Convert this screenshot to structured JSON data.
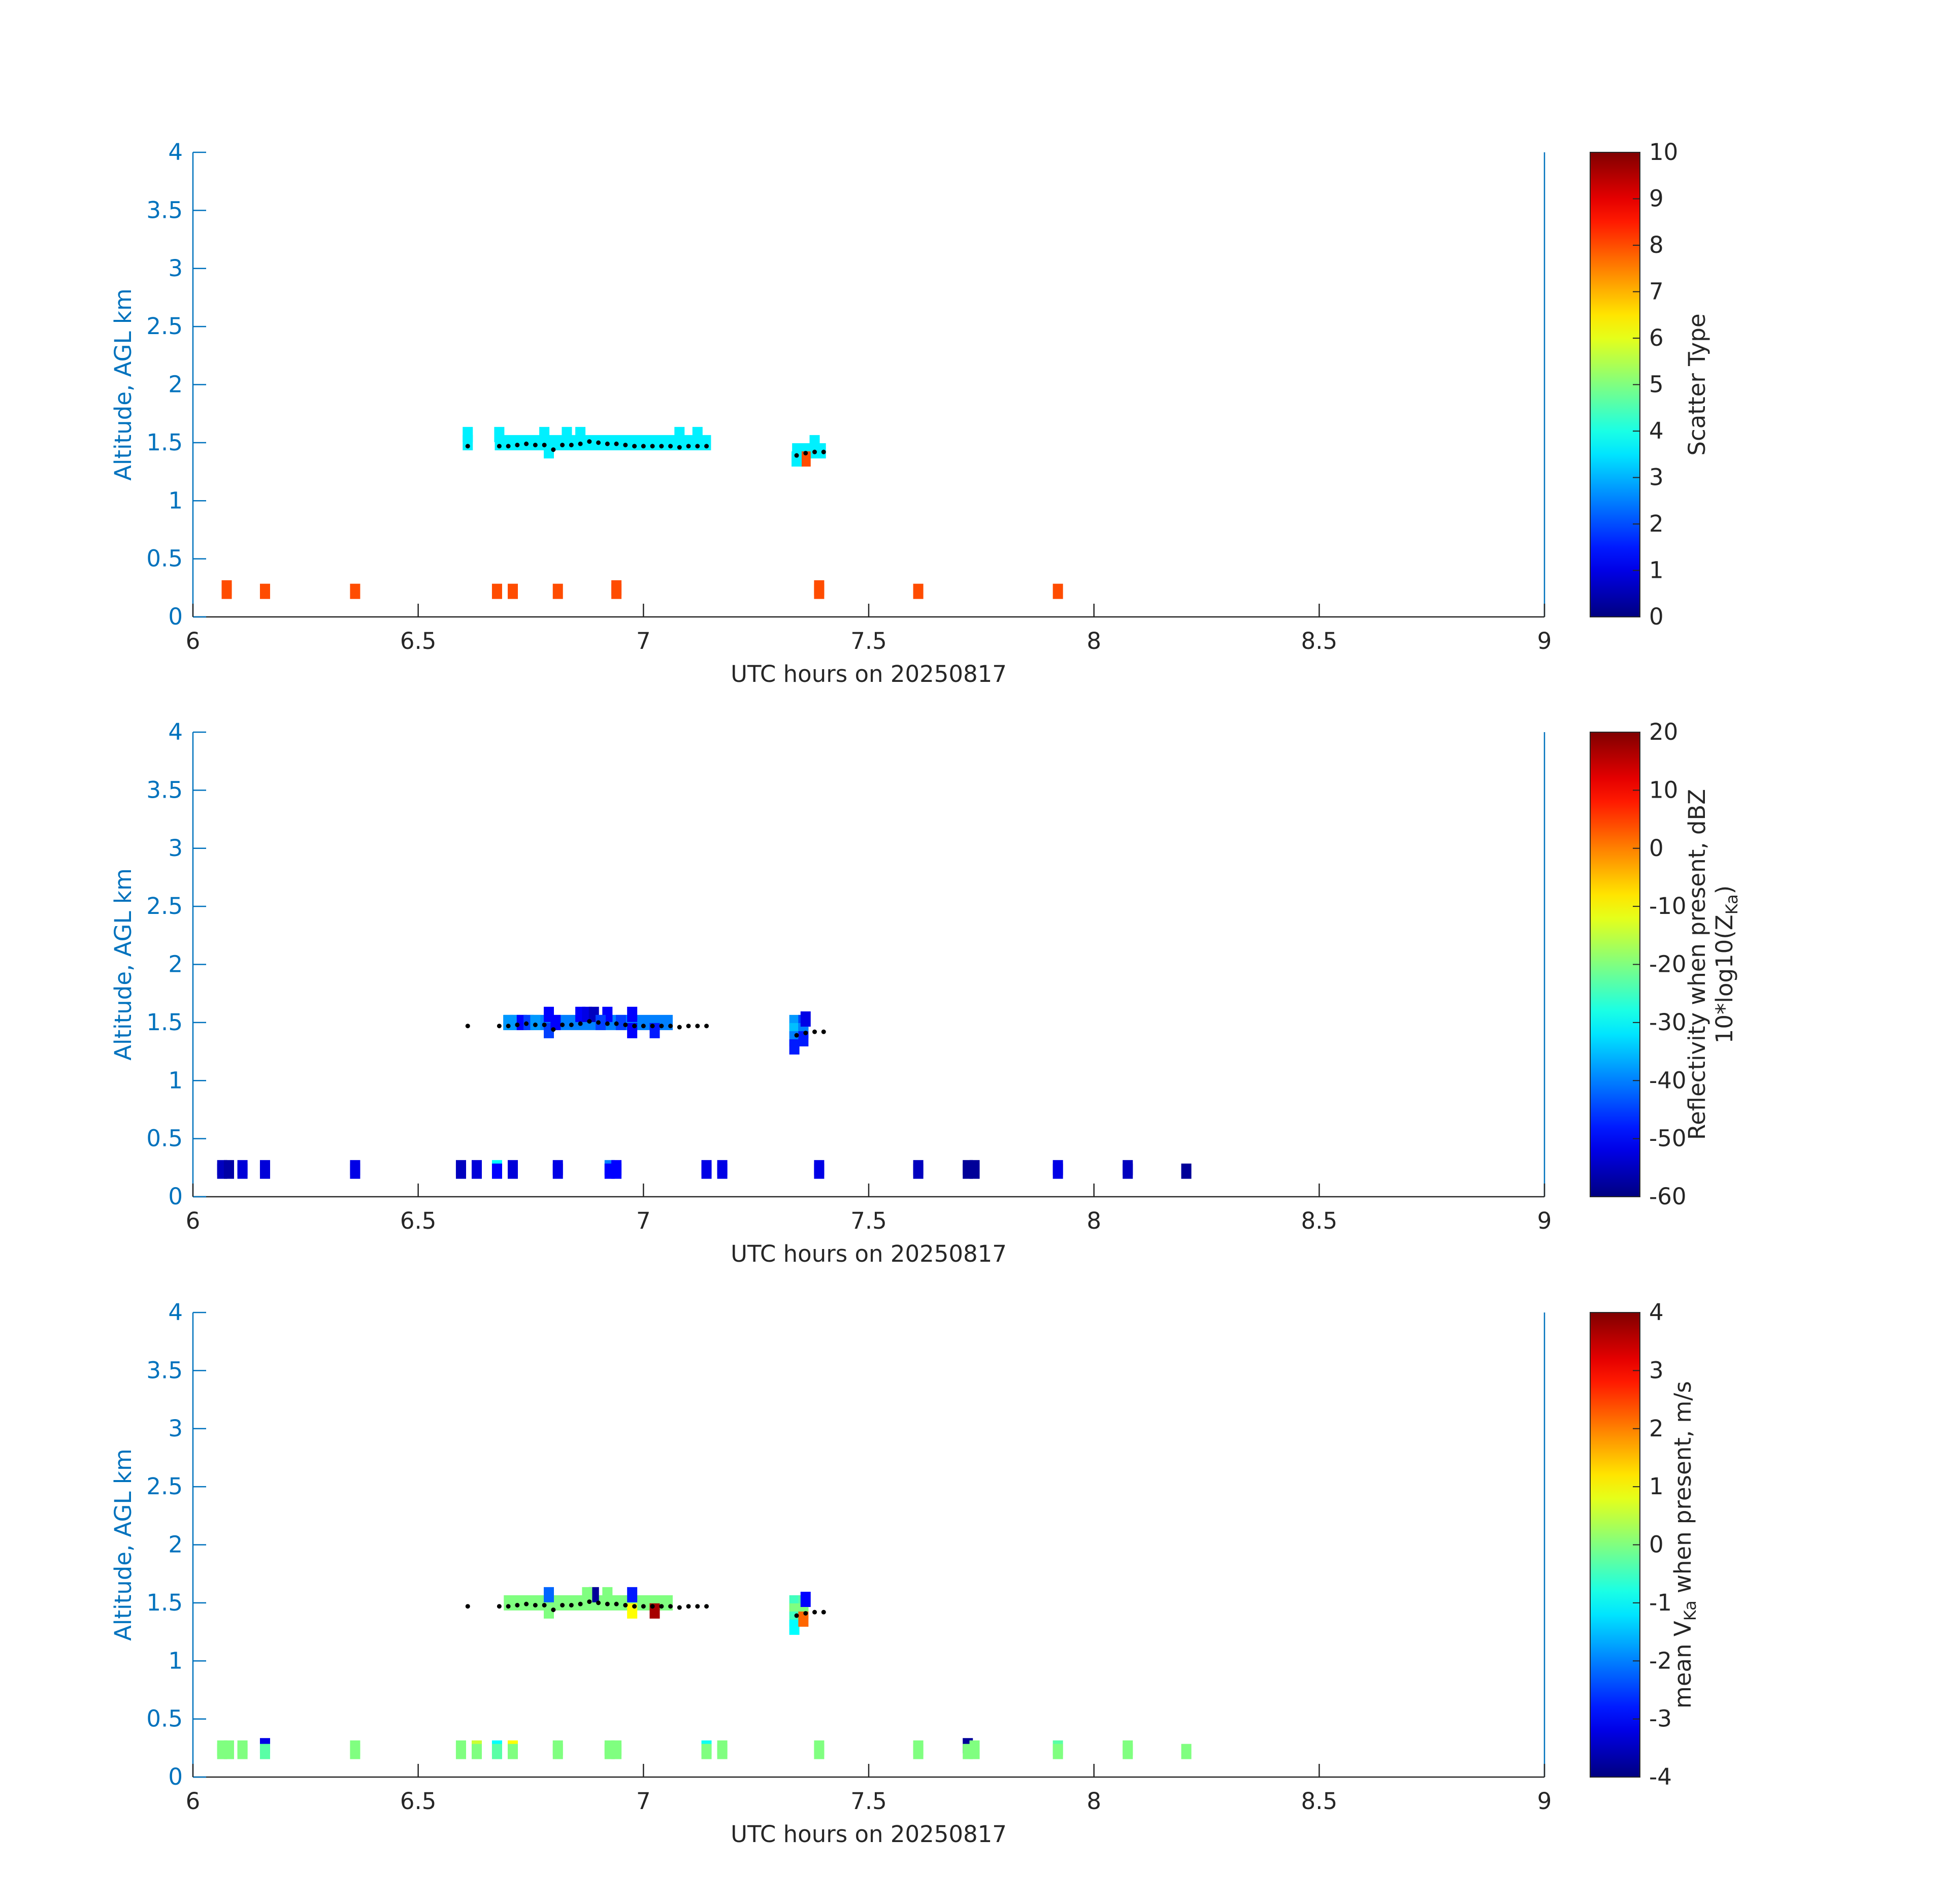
{
  "chart_data": [
    {
      "type": "heatmap",
      "xlabel": "UTC hours on 20250817",
      "ylabel": "Altitude, AGL km",
      "xlim": [
        6,
        9
      ],
      "ylim": [
        0,
        4
      ],
      "x_ticks": [
        "6",
        "6.5",
        "7",
        "7.5",
        "8",
        "8.5",
        "9"
      ],
      "y_ticks": [
        "0",
        "0.5",
        "1",
        "1.5",
        "2",
        "2.5",
        "3",
        "3.5",
        "4"
      ],
      "colorbar": {
        "label_lines": [
          "Scatter Type"
        ],
        "range": [
          0,
          10
        ],
        "ticks": [
          "0",
          "1",
          "2",
          "3",
          "4",
          "5",
          "6",
          "7",
          "8",
          "9",
          "10"
        ],
        "colormap": "jet"
      },
      "cells": [
        {
          "t": 6.075,
          "z": 0.25,
          "v": 8
        },
        {
          "t": 6.075,
          "z": 0.22,
          "v": 8
        },
        {
          "t": 6.16,
          "z": 0.22,
          "v": 8
        },
        {
          "t": 6.36,
          "z": 0.22,
          "v": 8
        },
        {
          "t": 6.675,
          "z": 0.22,
          "v": 8
        },
        {
          "t": 6.71,
          "z": 0.22,
          "v": 8
        },
        {
          "t": 6.81,
          "z": 0.22,
          "v": 8
        },
        {
          "t": 6.94,
          "z": 0.25,
          "v": 8
        },
        {
          "t": 6.94,
          "z": 0.22,
          "v": 8
        },
        {
          "t": 7.39,
          "z": 0.25,
          "v": 8
        },
        {
          "t": 7.39,
          "z": 0.22,
          "v": 8
        },
        {
          "t": 7.61,
          "z": 0.22,
          "v": 8
        },
        {
          "t": 7.92,
          "z": 0.22,
          "v": 8
        },
        {
          "t": 7.36,
          "z": 1.36,
          "v": 8
        },
        {
          "t": 6.61,
          "z": 1.57,
          "v": 3.6
        },
        {
          "t": 6.61,
          "z": 1.5,
          "v": 3.6
        },
        {
          "t": 6.68,
          "z": 1.57,
          "v": 3.6
        },
        {
          "t": 6.78,
          "z": 1.57,
          "v": 3.6
        },
        {
          "t": 6.79,
          "z": 1.43,
          "v": 3.6
        },
        {
          "t": 6.83,
          "z": 1.57,
          "v": 3.6
        },
        {
          "t": 6.86,
          "z": 1.57,
          "v": 3.6
        },
        {
          "t": 7.08,
          "z": 1.57,
          "v": 3.6
        },
        {
          "t": 7.12,
          "z": 1.57,
          "v": 3.6
        },
        {
          "t": 7.34,
          "z": 1.36,
          "v": 3.6
        },
        {
          "t": 7.38,
          "z": 1.5,
          "v": 3.6
        }
      ],
      "strips": [
        {
          "t0": 6.67,
          "t1": 7.15,
          "z": 1.5,
          "v": 3.6
        },
        {
          "t0": 7.33,
          "t1": 7.405,
          "z": 1.43,
          "v": 3.6
        }
      ],
      "cloud_base_points": [
        [
          6.61,
          1.47
        ],
        [
          6.68,
          1.47
        ],
        [
          6.7,
          1.47
        ],
        [
          6.72,
          1.48
        ],
        [
          6.74,
          1.49
        ],
        [
          6.76,
          1.48
        ],
        [
          6.78,
          1.48
        ],
        [
          6.8,
          1.44
        ],
        [
          6.82,
          1.48
        ],
        [
          6.84,
          1.48
        ],
        [
          6.86,
          1.49
        ],
        [
          6.88,
          1.51
        ],
        [
          6.9,
          1.5
        ],
        [
          6.92,
          1.49
        ],
        [
          6.94,
          1.49
        ],
        [
          6.96,
          1.48
        ],
        [
          6.98,
          1.47
        ],
        [
          7.0,
          1.47
        ],
        [
          7.02,
          1.47
        ],
        [
          7.04,
          1.47
        ],
        [
          7.06,
          1.47
        ],
        [
          7.08,
          1.46
        ],
        [
          7.1,
          1.47
        ],
        [
          7.12,
          1.47
        ],
        [
          7.14,
          1.47
        ],
        [
          7.34,
          1.39
        ],
        [
          7.36,
          1.41
        ],
        [
          7.38,
          1.42
        ],
        [
          7.4,
          1.42
        ]
      ]
    },
    {
      "type": "heatmap",
      "xlabel": "UTC hours on 20250817",
      "ylabel": "Altitude, AGL km",
      "xlim": [
        6,
        9
      ],
      "ylim": [
        0,
        4
      ],
      "x_ticks": [
        "6",
        "6.5",
        "7",
        "7.5",
        "8",
        "8.5",
        "9"
      ],
      "y_ticks": [
        "0",
        "0.5",
        "1",
        "1.5",
        "2",
        "2.5",
        "3",
        "3.5",
        "4"
      ],
      "colorbar": {
        "label_lines": [
          "Reflectivity when present, dBZ",
          "10*log10(Z",
          "Ka",
          ")"
        ],
        "range": [
          -60,
          20
        ],
        "ticks": [
          "-60",
          "-50",
          "-40",
          "-30",
          "-20",
          "-10",
          "0",
          "10",
          "20"
        ],
        "colormap": "jet"
      },
      "cells": [
        {
          "t": 6.065,
          "z": 0.25,
          "v": -55
        },
        {
          "t": 6.065,
          "z": 0.22,
          "v": -55
        },
        {
          "t": 6.08,
          "z": 0.25,
          "v": -57
        },
        {
          "t": 6.08,
          "z": 0.22,
          "v": -57
        },
        {
          "t": 6.11,
          "z": 0.25,
          "v": -53
        },
        {
          "t": 6.11,
          "z": 0.22,
          "v": -53
        },
        {
          "t": 6.16,
          "z": 0.25,
          "v": -53
        },
        {
          "t": 6.16,
          "z": 0.22,
          "v": -53
        },
        {
          "t": 6.36,
          "z": 0.25,
          "v": -52
        },
        {
          "t": 6.36,
          "z": 0.22,
          "v": -52
        },
        {
          "t": 6.595,
          "z": 0.25,
          "v": -55
        },
        {
          "t": 6.595,
          "z": 0.22,
          "v": -55
        },
        {
          "t": 6.63,
          "z": 0.25,
          "v": -53
        },
        {
          "t": 6.63,
          "z": 0.22,
          "v": -53
        },
        {
          "t": 6.675,
          "z": 0.25,
          "v": -30
        },
        {
          "t": 6.675,
          "z": 0.22,
          "v": -50
        },
        {
          "t": 6.71,
          "z": 0.25,
          "v": -53
        },
        {
          "t": 6.71,
          "z": 0.22,
          "v": -53
        },
        {
          "t": 6.81,
          "z": 0.25,
          "v": -52
        },
        {
          "t": 6.81,
          "z": 0.22,
          "v": -52
        },
        {
          "t": 6.925,
          "z": 0.25,
          "v": -40
        },
        {
          "t": 6.925,
          "z": 0.22,
          "v": -50
        },
        {
          "t": 6.94,
          "z": 0.25,
          "v": -50
        },
        {
          "t": 6.94,
          "z": 0.22,
          "v": -50
        },
        {
          "t": 7.14,
          "z": 0.25,
          "v": -52
        },
        {
          "t": 7.14,
          "z": 0.22,
          "v": -52
        },
        {
          "t": 7.175,
          "z": 0.25,
          "v": -52
        },
        {
          "t": 7.175,
          "z": 0.22,
          "v": -52
        },
        {
          "t": 7.39,
          "z": 0.25,
          "v": -52
        },
        {
          "t": 7.39,
          "z": 0.22,
          "v": -52
        },
        {
          "t": 7.61,
          "z": 0.25,
          "v": -55
        },
        {
          "t": 7.61,
          "z": 0.22,
          "v": -55
        },
        {
          "t": 7.72,
          "z": 0.25,
          "v": -58
        },
        {
          "t": 7.72,
          "z": 0.22,
          "v": -58
        },
        {
          "t": 7.735,
          "z": 0.25,
          "v": -58
        },
        {
          "t": 7.735,
          "z": 0.22,
          "v": -58
        },
        {
          "t": 7.92,
          "z": 0.25,
          "v": -52
        },
        {
          "t": 7.92,
          "z": 0.22,
          "v": -52
        },
        {
          "t": 8.075,
          "z": 0.25,
          "v": -55
        },
        {
          "t": 8.075,
          "z": 0.22,
          "v": -55
        },
        {
          "t": 8.205,
          "z": 0.22,
          "v": -58
        },
        {
          "t": 6.7,
          "z": 1.5,
          "v": -38
        },
        {
          "t": 6.715,
          "z": 1.5,
          "v": -38
        },
        {
          "t": 6.73,
          "z": 1.5,
          "v": -50
        },
        {
          "t": 6.745,
          "z": 1.5,
          "v": -45
        },
        {
          "t": 6.76,
          "z": 1.5,
          "v": -38
        },
        {
          "t": 6.79,
          "z": 1.57,
          "v": -50
        },
        {
          "t": 6.79,
          "z": 1.43,
          "v": -45
        },
        {
          "t": 6.805,
          "z": 1.5,
          "v": -50
        },
        {
          "t": 6.86,
          "z": 1.57,
          "v": -50
        },
        {
          "t": 6.875,
          "z": 1.57,
          "v": -52
        },
        {
          "t": 6.89,
          "z": 1.57,
          "v": -55
        },
        {
          "t": 6.92,
          "z": 1.57,
          "v": -50
        },
        {
          "t": 6.905,
          "z": 1.5,
          "v": -45
        },
        {
          "t": 6.95,
          "z": 1.5,
          "v": -45
        },
        {
          "t": 6.975,
          "z": 1.57,
          "v": -50
        },
        {
          "t": 6.975,
          "z": 1.43,
          "v": -50
        },
        {
          "t": 7.025,
          "z": 1.43,
          "v": -48
        },
        {
          "t": 7.335,
          "z": 1.5,
          "v": -38
        },
        {
          "t": 7.335,
          "z": 1.43,
          "v": -35
        },
        {
          "t": 7.335,
          "z": 1.36,
          "v": -40
        },
        {
          "t": 7.335,
          "z": 1.29,
          "v": -48
        },
        {
          "t": 7.355,
          "z": 1.5,
          "v": -45
        },
        {
          "t": 7.355,
          "z": 1.43,
          "v": -40
        },
        {
          "t": 7.355,
          "z": 1.36,
          "v": -48
        },
        {
          "t": 7.36,
          "z": 1.53,
          "v": -52
        }
      ],
      "strips": [
        {
          "t0": 6.69,
          "t1": 7.065,
          "z": 1.5,
          "v": -40
        }
      ],
      "cloud_base_points": [
        [
          6.61,
          1.47
        ],
        [
          6.68,
          1.47
        ],
        [
          6.7,
          1.47
        ],
        [
          6.72,
          1.48
        ],
        [
          6.74,
          1.49
        ],
        [
          6.76,
          1.48
        ],
        [
          6.78,
          1.48
        ],
        [
          6.8,
          1.44
        ],
        [
          6.82,
          1.48
        ],
        [
          6.84,
          1.48
        ],
        [
          6.86,
          1.49
        ],
        [
          6.88,
          1.51
        ],
        [
          6.9,
          1.5
        ],
        [
          6.92,
          1.49
        ],
        [
          6.94,
          1.49
        ],
        [
          6.96,
          1.48
        ],
        [
          6.98,
          1.47
        ],
        [
          7.0,
          1.47
        ],
        [
          7.02,
          1.47
        ],
        [
          7.04,
          1.47
        ],
        [
          7.06,
          1.47
        ],
        [
          7.08,
          1.46
        ],
        [
          7.1,
          1.47
        ],
        [
          7.12,
          1.47
        ],
        [
          7.14,
          1.47
        ],
        [
          7.34,
          1.39
        ],
        [
          7.36,
          1.41
        ],
        [
          7.38,
          1.42
        ],
        [
          7.4,
          1.42
        ]
      ]
    },
    {
      "type": "heatmap",
      "xlabel": "UTC hours on 20250817",
      "ylabel": "Altitude, AGL km",
      "xlim": [
        6,
        9
      ],
      "ylim": [
        0,
        4
      ],
      "x_ticks": [
        "6",
        "6.5",
        "7",
        "7.5",
        "8",
        "8.5",
        "9"
      ],
      "y_ticks": [
        "0",
        "0.5",
        "1",
        "1.5",
        "2",
        "2.5",
        "3",
        "3.5",
        "4"
      ],
      "colorbar": {
        "label_lines": [
          "mean V",
          "Ka",
          " when present, m/s"
        ],
        "range": [
          -4,
          4
        ],
        "ticks": [
          "-4",
          "-3",
          "-2",
          "-1",
          "0",
          "1",
          "2",
          "3",
          "4"
        ],
        "colormap": "jet"
      },
      "cells": [
        {
          "t": 6.065,
          "z": 0.25,
          "v": 0
        },
        {
          "t": 6.065,
          "z": 0.22,
          "v": 0
        },
        {
          "t": 6.08,
          "z": 0.25,
          "v": 0
        },
        {
          "t": 6.08,
          "z": 0.22,
          "v": 0
        },
        {
          "t": 6.11,
          "z": 0.25,
          "v": 0
        },
        {
          "t": 6.11,
          "z": 0.22,
          "v": 0
        },
        {
          "t": 6.16,
          "z": 0.27,
          "v": -3.2
        },
        {
          "t": 6.16,
          "z": 0.22,
          "v": -0.3
        },
        {
          "t": 6.36,
          "z": 0.25,
          "v": 0
        },
        {
          "t": 6.36,
          "z": 0.22,
          "v": 0
        },
        {
          "t": 6.595,
          "z": 0.25,
          "v": 0
        },
        {
          "t": 6.595,
          "z": 0.22,
          "v": 0
        },
        {
          "t": 6.63,
          "z": 0.25,
          "v": 0.6
        },
        {
          "t": 6.63,
          "z": 0.22,
          "v": 0
        },
        {
          "t": 6.675,
          "z": 0.25,
          "v": -1
        },
        {
          "t": 6.675,
          "z": 0.22,
          "v": -0.3
        },
        {
          "t": 6.71,
          "z": 0.25,
          "v": 1
        },
        {
          "t": 6.71,
          "z": 0.22,
          "v": 0
        },
        {
          "t": 6.81,
          "z": 0.25,
          "v": 0
        },
        {
          "t": 6.81,
          "z": 0.22,
          "v": 0
        },
        {
          "t": 6.925,
          "z": 0.25,
          "v": 0
        },
        {
          "t": 6.925,
          "z": 0.22,
          "v": 0
        },
        {
          "t": 6.94,
          "z": 0.25,
          "v": 0
        },
        {
          "t": 6.94,
          "z": 0.22,
          "v": 0
        },
        {
          "t": 7.14,
          "z": 0.25,
          "v": -0.9
        },
        {
          "t": 7.14,
          "z": 0.22,
          "v": 0
        },
        {
          "t": 7.175,
          "z": 0.25,
          "v": 0
        },
        {
          "t": 7.175,
          "z": 0.22,
          "v": 0
        },
        {
          "t": 7.39,
          "z": 0.25,
          "v": 0
        },
        {
          "t": 7.39,
          "z": 0.22,
          "v": 0
        },
        {
          "t": 7.61,
          "z": 0.25,
          "v": 0
        },
        {
          "t": 7.61,
          "z": 0.22,
          "v": 0
        },
        {
          "t": 7.72,
          "z": 0.27,
          "v": -3.8
        },
        {
          "t": 7.72,
          "z": 0.22,
          "v": 0
        },
        {
          "t": 7.735,
          "z": 0.25,
          "v": 0
        },
        {
          "t": 7.735,
          "z": 0.22,
          "v": 0
        },
        {
          "t": 7.92,
          "z": 0.25,
          "v": -0.3
        },
        {
          "t": 7.92,
          "z": 0.22,
          "v": 0
        },
        {
          "t": 8.075,
          "z": 0.25,
          "v": 0
        },
        {
          "t": 8.075,
          "z": 0.22,
          "v": 0
        },
        {
          "t": 8.205,
          "z": 0.22,
          "v": 0
        },
        {
          "t": 6.79,
          "z": 1.57,
          "v": -2.2
        },
        {
          "t": 6.79,
          "z": 1.43,
          "v": 0
        },
        {
          "t": 6.89,
          "z": 1.57,
          "v": -3.8
        },
        {
          "t": 6.875,
          "z": 1.57,
          "v": 0
        },
        {
          "t": 6.92,
          "z": 1.57,
          "v": 0
        },
        {
          "t": 6.975,
          "z": 1.57,
          "v": -2.8
        },
        {
          "t": 6.975,
          "z": 1.43,
          "v": 1
        },
        {
          "t": 7.025,
          "z": 1.43,
          "v": 3.7
        },
        {
          "t": 7.335,
          "z": 1.5,
          "v": -0.5
        },
        {
          "t": 7.335,
          "z": 1.43,
          "v": 0
        },
        {
          "t": 7.335,
          "z": 1.36,
          "v": -0.5
        },
        {
          "t": 7.335,
          "z": 1.29,
          "v": -1
        },
        {
          "t": 7.355,
          "z": 1.5,
          "v": -0.3
        },
        {
          "t": 7.355,
          "z": 1.43,
          "v": 0
        },
        {
          "t": 7.355,
          "z": 1.36,
          "v": 2.2
        },
        {
          "t": 7.36,
          "z": 1.53,
          "v": -3
        }
      ],
      "strips": [
        {
          "t0": 6.69,
          "t1": 7.065,
          "z": 1.5,
          "v": 0
        }
      ],
      "cloud_base_points": [
        [
          6.61,
          1.47
        ],
        [
          6.68,
          1.47
        ],
        [
          6.7,
          1.47
        ],
        [
          6.72,
          1.48
        ],
        [
          6.74,
          1.49
        ],
        [
          6.76,
          1.48
        ],
        [
          6.78,
          1.48
        ],
        [
          6.8,
          1.44
        ],
        [
          6.82,
          1.48
        ],
        [
          6.84,
          1.48
        ],
        [
          6.86,
          1.49
        ],
        [
          6.88,
          1.51
        ],
        [
          6.9,
          1.5
        ],
        [
          6.92,
          1.49
        ],
        [
          6.94,
          1.49
        ],
        [
          6.96,
          1.48
        ],
        [
          6.98,
          1.47
        ],
        [
          7.0,
          1.47
        ],
        [
          7.02,
          1.47
        ],
        [
          7.04,
          1.47
        ],
        [
          7.06,
          1.47
        ],
        [
          7.08,
          1.46
        ],
        [
          7.1,
          1.47
        ],
        [
          7.12,
          1.47
        ],
        [
          7.14,
          1.47
        ],
        [
          7.34,
          1.39
        ],
        [
          7.36,
          1.41
        ],
        [
          7.38,
          1.42
        ],
        [
          7.4,
          1.42
        ]
      ]
    }
  ]
}
